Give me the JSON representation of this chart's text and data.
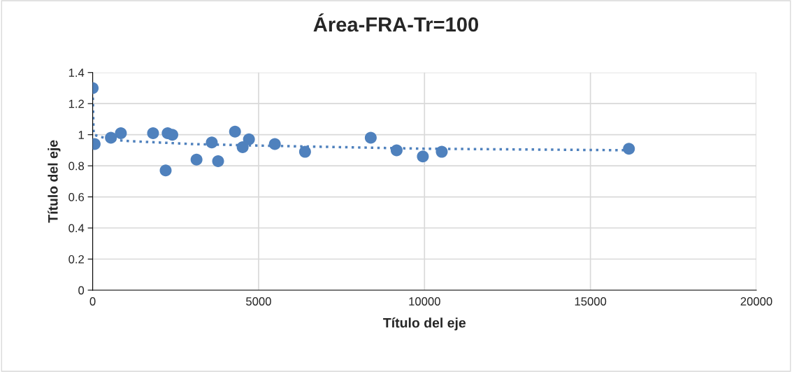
{
  "chart_data": {
    "type": "scatter",
    "title": "Área-FRA-Tr=100",
    "xlabel": "Título del eje",
    "ylabel": "Título del eje",
    "xlim": [
      0,
      20000
    ],
    "xticks": [
      0,
      5000,
      10000,
      15000,
      20000
    ],
    "ylim": [
      0,
      1.4
    ],
    "yticks": [
      0,
      0.2,
      0.4,
      0.6,
      0.8,
      1,
      1.2,
      1.4
    ],
    "grid": true,
    "legend": false,
    "series": [
      {
        "color": "#4f81bd",
        "marker": "circle",
        "x": [
          0,
          60,
          550,
          850,
          1820,
          2260,
          2400,
          2200,
          3130,
          3590,
          3780,
          4290,
          4520,
          4710,
          5490,
          6400,
          8380,
          9160,
          9950,
          10520,
          16160
        ],
        "values": [
          1.3,
          0.94,
          0.98,
          1.01,
          1.01,
          1.01,
          1.0,
          0.77,
          0.84,
          0.95,
          0.83,
          1.02,
          0.92,
          0.97,
          0.94,
          0.89,
          0.98,
          0.9,
          0.86,
          0.89,
          0.91
        ]
      },
      {
        "type": "line",
        "color": "#4f81bd",
        "line_style": "dotted",
        "x": [
          1,
          30,
          500,
          1000,
          3000,
          5000,
          10000,
          16160
        ],
        "values": [
          1.28,
          1.0,
          0.97,
          0.96,
          0.94,
          0.93,
          0.91,
          0.9
        ]
      }
    ]
  }
}
